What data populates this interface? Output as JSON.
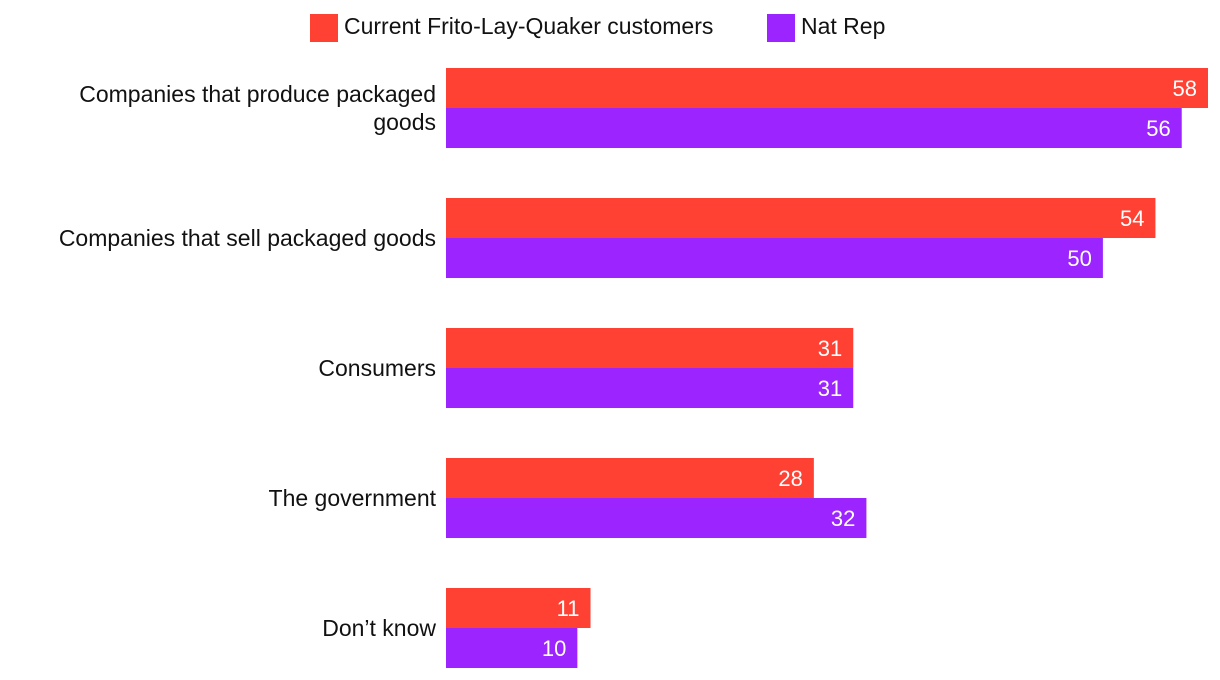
{
  "chart_data": {
    "type": "bar",
    "orientation": "horizontal",
    "title": "",
    "xlabel": "",
    "ylabel": "",
    "xlim": [
      0,
      58
    ],
    "grid": false,
    "legend_position": "top",
    "categories": [
      [
        "Companies that produce packaged",
        "goods"
      ],
      [
        "Companies that sell packaged goods"
      ],
      [
        "Consumers"
      ],
      [
        "The government"
      ],
      [
        "Don’t know"
      ]
    ],
    "series": [
      {
        "name": "Current Frito-Lay-Quaker customers",
        "color": "#ff4133",
        "values": [
          58,
          54,
          31,
          28,
          11
        ]
      },
      {
        "name": "Nat Rep",
        "color": "#9b24ff",
        "values": [
          56,
          50,
          31,
          32,
          10
        ]
      }
    ]
  }
}
